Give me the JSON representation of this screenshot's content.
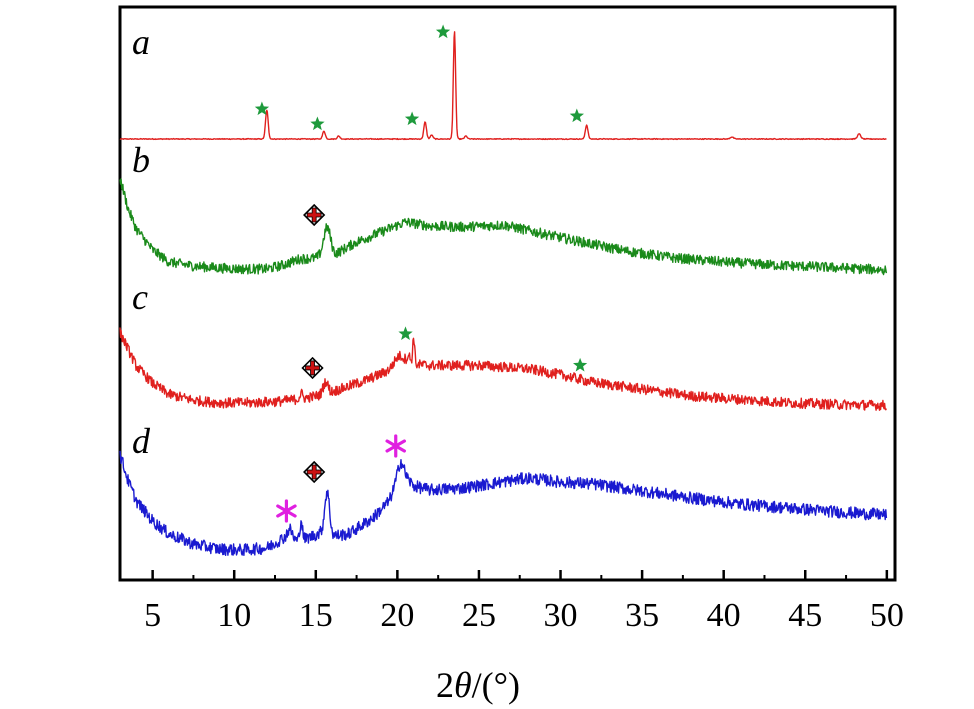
{
  "chart_data": {
    "type": "line",
    "title": "",
    "xlabel": {
      "prefix": "2",
      "symbol": "θ",
      "suffix": "/(°)"
    },
    "ylabel": "",
    "xlim": [
      3,
      50.5
    ],
    "x_ticks": [
      5,
      10,
      15,
      20,
      25,
      30,
      35,
      40,
      45,
      50
    ],
    "tick_labels": [
      "5",
      "10",
      "15",
      "20",
      "25",
      "30",
      "35",
      "40",
      "45",
      "50"
    ],
    "y_axis": "stacked offset intensity (a.u.), no scale",
    "colors": {
      "a": "#e0201e",
      "b": "#1a8a1a",
      "c": "#e0201e",
      "d": "#1a1ad0",
      "star": "#1e9a3c",
      "asterisk": "#e020e0",
      "marker": "#cc1111"
    },
    "series": [
      {
        "name": "a",
        "label": "a",
        "color": "#e0201e",
        "baseline": 0,
        "noise": 0.4,
        "points": [
          [
            3.0,
            0
          ],
          [
            50.0,
            0
          ]
        ],
        "peaks": [
          [
            12.0,
            29,
            0.08
          ],
          [
            15.5,
            8,
            0.08
          ],
          [
            16.4,
            3,
            0.08
          ],
          [
            21.7,
            17,
            0.08
          ],
          [
            22.1,
            4,
            0.08
          ],
          [
            23.5,
            108,
            0.07
          ],
          [
            24.2,
            3,
            0.08
          ],
          [
            31.6,
            14,
            0.08
          ],
          [
            40.5,
            2,
            0.1
          ],
          [
            48.3,
            5,
            0.1
          ]
        ],
        "markers": [
          {
            "kind": "star",
            "x": 11.7,
            "y": 30
          },
          {
            "kind": "star",
            "x": 15.1,
            "y": 15
          },
          {
            "kind": "star",
            "x": 20.9,
            "y": 20
          },
          {
            "kind": "star",
            "x": 22.8,
            "y": 107
          },
          {
            "kind": "star",
            "x": 31.0,
            "y": 23
          }
        ]
      },
      {
        "name": "b",
        "label": "b",
        "color": "#1a8a1a",
        "baseline": 0,
        "noise": 5,
        "points": [
          [
            3.0,
            96
          ],
          [
            3.5,
            65
          ],
          [
            4.0,
            45
          ],
          [
            5.0,
            24
          ],
          [
            6.0,
            12
          ],
          [
            7.5,
            8
          ],
          [
            9.0,
            6
          ],
          [
            10.5,
            5
          ],
          [
            12.0,
            5
          ],
          [
            13.0,
            9
          ],
          [
            14.0,
            15
          ],
          [
            15.0,
            16
          ],
          [
            15.5,
            21
          ],
          [
            16.2,
            20
          ],
          [
            17.5,
            32
          ],
          [
            19.0,
            42
          ],
          [
            20.5,
            52
          ],
          [
            22.0,
            48
          ],
          [
            24.0,
            47
          ],
          [
            26.5,
            49
          ],
          [
            29.0,
            40
          ],
          [
            31.0,
            33
          ],
          [
            34.0,
            23
          ],
          [
            37.0,
            16
          ],
          [
            40.0,
            12
          ],
          [
            43.0,
            9
          ],
          [
            46.0,
            7
          ],
          [
            50.0,
            4
          ]
        ],
        "peaks": [
          [
            15.7,
            26,
            0.2
          ]
        ],
        "markers": [
          {
            "kind": "cross",
            "x": 14.9,
            "y": 59
          }
        ]
      },
      {
        "name": "c",
        "label": "c",
        "color": "#e0201e",
        "baseline": 0,
        "noise": 6,
        "points": [
          [
            3.0,
            95
          ],
          [
            3.5,
            75
          ],
          [
            4.0,
            55
          ],
          [
            5.0,
            35
          ],
          [
            6.0,
            22
          ],
          [
            7.5,
            15
          ],
          [
            9.0,
            12
          ],
          [
            11.0,
            12
          ],
          [
            13.0,
            14
          ],
          [
            14.5,
            18
          ],
          [
            15.5,
            22
          ],
          [
            16.5,
            28
          ],
          [
            18.0,
            38
          ],
          [
            19.5,
            50
          ],
          [
            20.5,
            58
          ],
          [
            22.0,
            56
          ],
          [
            25.0,
            56
          ],
          [
            28.0,
            52
          ],
          [
            30.0,
            45
          ],
          [
            32.0,
            36
          ],
          [
            35.0,
            28
          ],
          [
            38.0,
            20
          ],
          [
            41.0,
            16
          ],
          [
            44.0,
            12
          ],
          [
            47.0,
            10
          ],
          [
            50.0,
            9
          ]
        ],
        "peaks": [
          [
            15.6,
            14,
            0.15
          ],
          [
            20.1,
            12,
            0.3
          ],
          [
            20.7,
            8,
            0.1
          ],
          [
            21.0,
            32,
            0.06
          ],
          [
            14.1,
            6,
            0.08
          ]
        ],
        "markers": [
          {
            "kind": "star",
            "x": 20.5,
            "y": 93
          },
          {
            "kind": "star",
            "x": 31.2,
            "y": 56
          },
          {
            "kind": "cross",
            "x": 14.8,
            "y": 53
          }
        ]
      },
      {
        "name": "d",
        "label": "d",
        "color": "#1a1ad0",
        "baseline": 0,
        "noise": 6,
        "points": [
          [
            3.0,
            102
          ],
          [
            3.5,
            75
          ],
          [
            4.0,
            55
          ],
          [
            5.0,
            35
          ],
          [
            6.0,
            22
          ],
          [
            7.5,
            12
          ],
          [
            9.0,
            7
          ],
          [
            10.5,
            6
          ],
          [
            12.0,
            8
          ],
          [
            13.0,
            18
          ],
          [
            14.0,
            15
          ],
          [
            14.8,
            20
          ],
          [
            15.6,
            25
          ],
          [
            16.0,
            20
          ],
          [
            17.0,
            22
          ],
          [
            18.5,
            38
          ],
          [
            19.5,
            55
          ],
          [
            20.2,
            85
          ],
          [
            21.0,
            70
          ],
          [
            22.0,
            66
          ],
          [
            24.0,
            68
          ],
          [
            26.0,
            73
          ],
          [
            28.0,
            78
          ],
          [
            30.0,
            74
          ],
          [
            32.0,
            72
          ],
          [
            35.0,
            65
          ],
          [
            38.0,
            58
          ],
          [
            41.0,
            52
          ],
          [
            44.0,
            48
          ],
          [
            47.0,
            44
          ],
          [
            50.0,
            41
          ]
        ],
        "peaks": [
          [
            13.4,
            10,
            0.15
          ],
          [
            14.1,
            20,
            0.08
          ],
          [
            15.7,
            40,
            0.15
          ],
          [
            20.2,
            10,
            0.2
          ]
        ],
        "markers": [
          {
            "kind": "asterisk",
            "x": 13.2,
            "y": 45
          },
          {
            "kind": "asterisk",
            "x": 19.9,
            "y": 110
          },
          {
            "kind": "cross",
            "x": 14.9,
            "y": 84
          }
        ]
      }
    ]
  }
}
